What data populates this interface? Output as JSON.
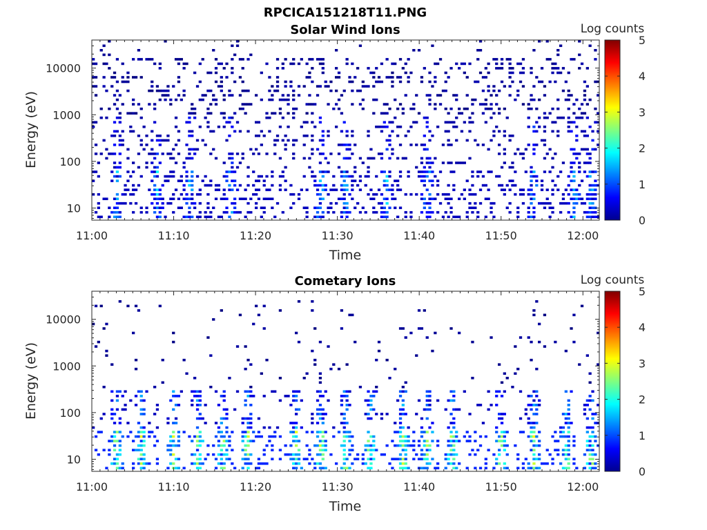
{
  "figure_title": "RPCICA151218T11.PNG",
  "colorbar_label": "Log counts",
  "colorbar_ticks": [
    "0",
    "1",
    "2",
    "3",
    "4",
    "5"
  ],
  "colors": {
    "axis": "#262626",
    "colormap": "jet",
    "background": "#ffffff"
  },
  "chart_data": [
    {
      "type": "heatmap",
      "title": "Solar Wind Ions",
      "xlabel": "Time",
      "ylabel": "Energy (eV)",
      "yscale": "log",
      "ylim": [
        5.5,
        40000
      ],
      "xlim": [
        "11:00",
        "12:02"
      ],
      "x_ticks": [
        "11:00",
        "11:10",
        "11:20",
        "11:30",
        "11:40",
        "11:50",
        "12:00"
      ],
      "y_ticks": [
        "10",
        "100",
        "1000",
        "10000"
      ],
      "colorbar_range": [
        0,
        5
      ],
      "colorbar_label": "Log counts",
      "summary": {
        "bulk_log_counts_range": [
          0,
          2
        ],
        "high_energy_scatter_eV": [
          1000,
          20000
        ],
        "low_energy_enhancement_eV": [
          6,
          60
        ],
        "enhancement_times": [
          "11:03",
          "11:08",
          "11:12",
          "11:17",
          "11:28",
          "11:31",
          "11:36",
          "11:41",
          "11:54",
          "11:59",
          "12:01"
        ]
      }
    },
    {
      "type": "heatmap",
      "title": "Cometary Ions",
      "xlabel": "Time",
      "ylabel": "Energy (eV)",
      "yscale": "log",
      "ylim": [
        5.5,
        40000
      ],
      "xlim": [
        "11:00",
        "12:02"
      ],
      "x_ticks": [
        "11:00",
        "11:10",
        "11:20",
        "11:30",
        "11:40",
        "11:50",
        "12:00"
      ],
      "y_ticks": [
        "10",
        "100",
        "1000",
        "10000"
      ],
      "colorbar_range": [
        0,
        5
      ],
      "colorbar_label": "Log counts",
      "summary": {
        "bulk_log_counts_range": [
          0,
          3.2
        ],
        "peak_energy_eV": [
          6,
          40
        ],
        "sparse_high_energy_eV": [
          1000,
          25000
        ],
        "burst_times": [
          "11:03",
          "11:06",
          "11:10",
          "11:13",
          "11:16",
          "11:19",
          "11:25",
          "11:28",
          "11:31",
          "11:34",
          "11:38",
          "11:41",
          "11:44",
          "11:50",
          "11:54",
          "11:58",
          "12:01"
        ]
      }
    }
  ]
}
